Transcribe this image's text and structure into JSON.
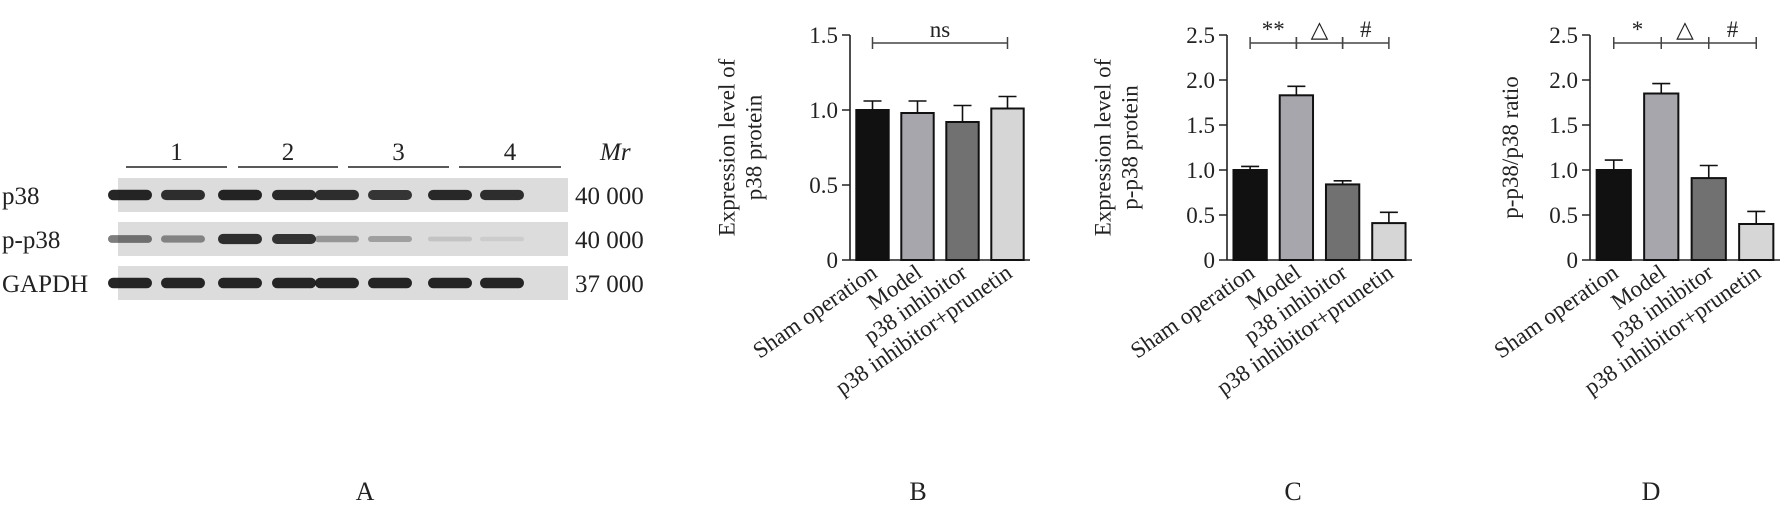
{
  "panels": [
    "A",
    "B",
    "C",
    "D"
  ],
  "blot": {
    "lanes": [
      "1",
      "2",
      "3",
      "4"
    ],
    "mr_label": "Mr",
    "rows": [
      {
        "label": "p38",
        "mr": "40 000",
        "intensity": [
          0.92,
          0.88,
          0.93,
          0.9,
          0.88,
          0.84,
          0.9,
          0.88
        ]
      },
      {
        "label": "p-p38",
        "mr": "40 000",
        "intensity": [
          0.55,
          0.45,
          0.88,
          0.85,
          0.35,
          0.3,
          0.12,
          0.08
        ]
      },
      {
        "label": "GAPDH",
        "mr": "37 000",
        "intensity": [
          0.92,
          0.92,
          0.92,
          0.92,
          0.92,
          0.92,
          0.92,
          0.92
        ]
      }
    ]
  },
  "chart_data": [
    {
      "panel": "B",
      "type": "bar",
      "ylabel": "Expression level of p38 protein",
      "ylabel_lines": [
        "Expression level of",
        "p38 protein"
      ],
      "ylim": [
        0,
        1.5
      ],
      "yticks": [
        "0",
        "0.5",
        "1.0",
        "1.5"
      ],
      "categories": [
        "Sham operation",
        "Model",
        "p38 inhibitor",
        "p38 inhibitor+prunetin"
      ],
      "values": [
        1.0,
        0.98,
        0.92,
        1.01
      ],
      "errors": [
        0.06,
        0.08,
        0.11,
        0.08
      ],
      "significance": [
        {
          "from": 0,
          "to": 3,
          "label": "ns"
        }
      ]
    },
    {
      "panel": "C",
      "type": "bar",
      "ylabel": "Expression level of p-p38 protein",
      "ylabel_lines": [
        "Expression level of",
        "p-p38 protein"
      ],
      "ylim": [
        0,
        2.5
      ],
      "yticks": [
        "0",
        "0.5",
        "1.0",
        "1.5",
        "2.0",
        "2.5"
      ],
      "categories": [
        "Sham operation",
        "Model",
        "p38 inhibitor",
        "p38 inhibitor+prunetin"
      ],
      "values": [
        1.0,
        1.83,
        0.84,
        0.41
      ],
      "errors": [
        0.04,
        0.1,
        0.04,
        0.12
      ],
      "significance": [
        {
          "from": 0,
          "to": 1,
          "label": "**"
        },
        {
          "from": 1,
          "to": 2,
          "label": "△"
        },
        {
          "from": 2,
          "to": 3,
          "label": "#"
        }
      ]
    },
    {
      "panel": "D",
      "type": "bar",
      "ylabel": "p-p38/p38 ratio",
      "ylabel_lines": [
        "p-p38/p38 ratio"
      ],
      "ylim": [
        0,
        2.5
      ],
      "yticks": [
        "0",
        "0.5",
        "1.0",
        "1.5",
        "2.0",
        "2.5"
      ],
      "categories": [
        "Sham operation",
        "Model",
        "p38 inhibitor",
        "p38 inhibitor+prunetin"
      ],
      "values": [
        1.0,
        1.85,
        0.91,
        0.4
      ],
      "errors": [
        0.11,
        0.11,
        0.14,
        0.14
      ],
      "significance": [
        {
          "from": 0,
          "to": 1,
          "label": "*"
        },
        {
          "from": 1,
          "to": 2,
          "label": "△"
        },
        {
          "from": 2,
          "to": 3,
          "label": "#"
        }
      ]
    }
  ],
  "colors": {
    "bars": [
      "#111111",
      "#a7a6ad",
      "#717171",
      "#d6d6d6"
    ],
    "axis": "#222222",
    "blot_background": "#dcdcdc",
    "band": "#141414"
  }
}
